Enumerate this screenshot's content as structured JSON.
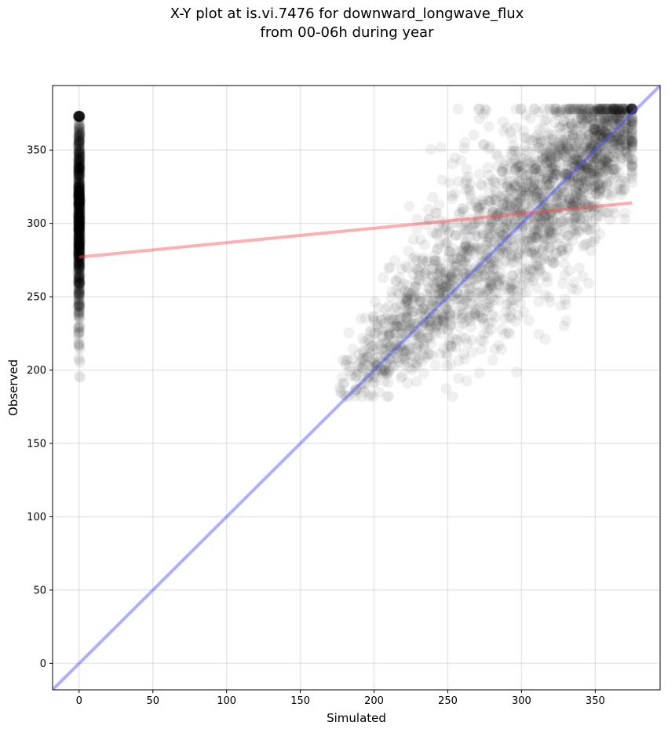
{
  "chart_data": {
    "type": "scatter",
    "title": "X-Y plot at is.vi.7476 for downward_longwave_flux",
    "subtitle": "from 00-06h during year",
    "xlabel": "Simulated",
    "ylabel": "Observed",
    "xlim": [
      -18,
      394
    ],
    "ylim": [
      -18,
      394
    ],
    "xticks": [
      0,
      50,
      100,
      150,
      200,
      250,
      300,
      350
    ],
    "yticks": [
      0,
      50,
      100,
      150,
      200,
      250,
      300,
      350
    ],
    "grid": true,
    "point_color": "#000000",
    "point_alpha": 0.06,
    "series": [
      {
        "kind": "scatter-cluster-zero",
        "x": 0,
        "y_range": [
          180,
          373
        ],
        "y_mean": 300,
        "count": 900
      },
      {
        "kind": "scatter-cluster-main",
        "x_range": [
          175,
          375
        ],
        "y_range": [
          182,
          378
        ],
        "x_mean": 285,
        "count": 2400
      }
    ],
    "regression_line": {
      "color": "#ff4d4d",
      "alpha": 0.45,
      "x": [
        0,
        375
      ],
      "y": [
        277,
        314
      ]
    },
    "identity_line": {
      "color": "#4d4dff",
      "alpha": 0.45,
      "x": [
        -18,
        394
      ],
      "y": [
        -18,
        394
      ]
    }
  }
}
